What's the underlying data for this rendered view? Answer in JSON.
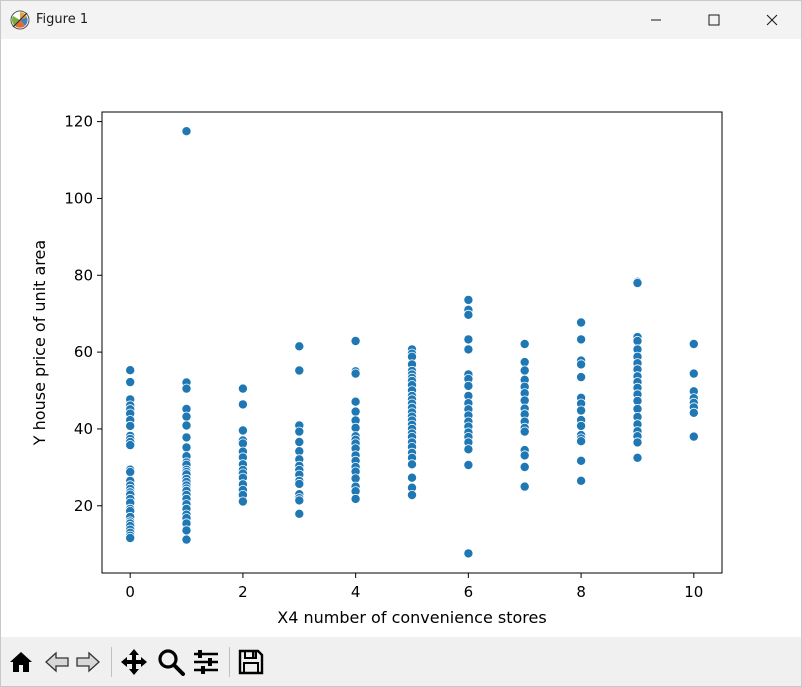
{
  "window": {
    "title": "Figure 1",
    "controls": [
      "minimize",
      "maximize",
      "close"
    ]
  },
  "toolbar": {
    "buttons": [
      {
        "name": "home-button",
        "icon": "home-icon",
        "tooltip": "Reset original view"
      },
      {
        "name": "back-button",
        "icon": "arrow-left-icon",
        "tooltip": "Back to previous view"
      },
      {
        "name": "forward-button",
        "icon": "arrow-right-icon",
        "tooltip": "Forward to next view"
      },
      {
        "name": "pan-button",
        "icon": "move-icon",
        "tooltip": "Pan axes"
      },
      {
        "name": "zoom-button",
        "icon": "magnifier-icon",
        "tooltip": "Zoom to rectangle"
      },
      {
        "name": "configure-button",
        "icon": "sliders-icon",
        "tooltip": "Configure subplots"
      },
      {
        "name": "save-button",
        "icon": "floppy-disk-icon",
        "tooltip": "Save the figure"
      }
    ]
  },
  "colors": {
    "marker": "#1f77b4",
    "axes": "#000000",
    "titlebar": "#f3f3f3",
    "toolbar": "#f0f0f0"
  },
  "chart_data": {
    "type": "scatter",
    "title": "",
    "xlabel": "X4 number of convenience stores",
    "ylabel": "Y house price of unit area",
    "xlim": [
      -0.5,
      10.5
    ],
    "ylim": [
      2.5,
      122.5
    ],
    "xticks": [
      0,
      2,
      4,
      6,
      8,
      10
    ],
    "yticks": [
      20,
      40,
      60,
      80,
      100,
      120
    ],
    "grid": false,
    "legend": "none",
    "marker": "circle",
    "points_by_x": [
      {
        "x": 0,
        "y": [
          55.3,
          52.2,
          47.7,
          46.1,
          45.1,
          44.0,
          42.3,
          40.8,
          38.2,
          37.4,
          36.6,
          35.8,
          29.4,
          28.8,
          26.5,
          25.3,
          24.4,
          23.5,
          22.9,
          21.8,
          20.8,
          19.2,
          18.6,
          17.1,
          15.9,
          15.4,
          14.7,
          13.8,
          13.0,
          12.2,
          11.6
        ]
      },
      {
        "x": 1,
        "y": [
          117.5,
          52.1,
          50.5,
          45.2,
          43.2,
          40.9,
          37.8,
          35.2,
          32.9,
          31.3,
          30.7,
          29.4,
          28.8,
          28.2,
          27.0,
          26.2,
          25.3,
          24.5,
          23.9,
          22.8,
          21.8,
          20.4,
          19.2,
          17.7,
          16.8,
          15.4,
          13.6,
          11.2
        ]
      },
      {
        "x": 2,
        "y": [
          50.5,
          46.4,
          39.6,
          37.0,
          36.2,
          34.1,
          32.6,
          30.8,
          29.3,
          28.4,
          27.3,
          25.6,
          24.1,
          22.8,
          21.1
        ]
      },
      {
        "x": 3,
        "y": [
          61.5,
          55.2,
          40.9,
          39.3,
          36.6,
          34.2,
          32.1,
          30.4,
          29.3,
          28.1,
          26.5,
          25.7,
          23.0,
          22.0,
          21.4,
          17.9
        ]
      },
      {
        "x": 4,
        "y": [
          62.9,
          55.0,
          54.4,
          47.1,
          44.5,
          42.2,
          40.3,
          38.1,
          37.2,
          36.2,
          34.9,
          33.1,
          31.7,
          30.1,
          28.9,
          27.1,
          25.0,
          23.8,
          21.8
        ]
      },
      {
        "x": 5,
        "y": [
          60.7,
          59.6,
          58.8,
          56.8,
          55.1,
          54.2,
          53.3,
          52.5,
          51.4,
          50.0,
          48.6,
          47.7,
          46.6,
          45.5,
          44.3,
          43.2,
          42.2,
          41.1,
          40.0,
          38.8,
          37.9,
          36.5,
          35.3,
          33.8,
          32.5,
          30.8,
          27.3,
          24.7,
          22.8
        ]
      },
      {
        "x": 6,
        "y": [
          73.6,
          71.0,
          69.7,
          63.3,
          60.7,
          54.2,
          53.0,
          51.2,
          48.6,
          46.7,
          45.1,
          43.5,
          41.9,
          40.6,
          39.1,
          37.9,
          36.5,
          34.7,
          30.6,
          7.6
        ]
      },
      {
        "x": 7,
        "y": [
          62.1,
          57.4,
          55.2,
          52.8,
          51.0,
          49.3,
          47.4,
          45.3,
          43.8,
          41.9,
          40.3,
          39.3,
          34.5,
          33.1,
          30.1,
          25.0
        ]
      },
      {
        "x": 8,
        "y": [
          67.7,
          63.3,
          57.8,
          56.8,
          53.5,
          48.1,
          46.6,
          44.8,
          42.3,
          40.8,
          38.4,
          37.5,
          36.8,
          31.7,
          26.5
        ]
      },
      {
        "x": 9,
        "y": [
          78.3,
          78.0,
          63.9,
          62.9,
          60.7,
          58.8,
          57.1,
          55.5,
          53.7,
          52.2,
          50.7,
          49.0,
          47.3,
          45.2,
          43.1,
          41.2,
          39.4,
          38.1,
          36.5,
          32.5
        ]
      },
      {
        "x": 10,
        "y": [
          62.1,
          54.4,
          49.8,
          48.0,
          46.8,
          45.6,
          44.2,
          38.0
        ]
      }
    ]
  }
}
